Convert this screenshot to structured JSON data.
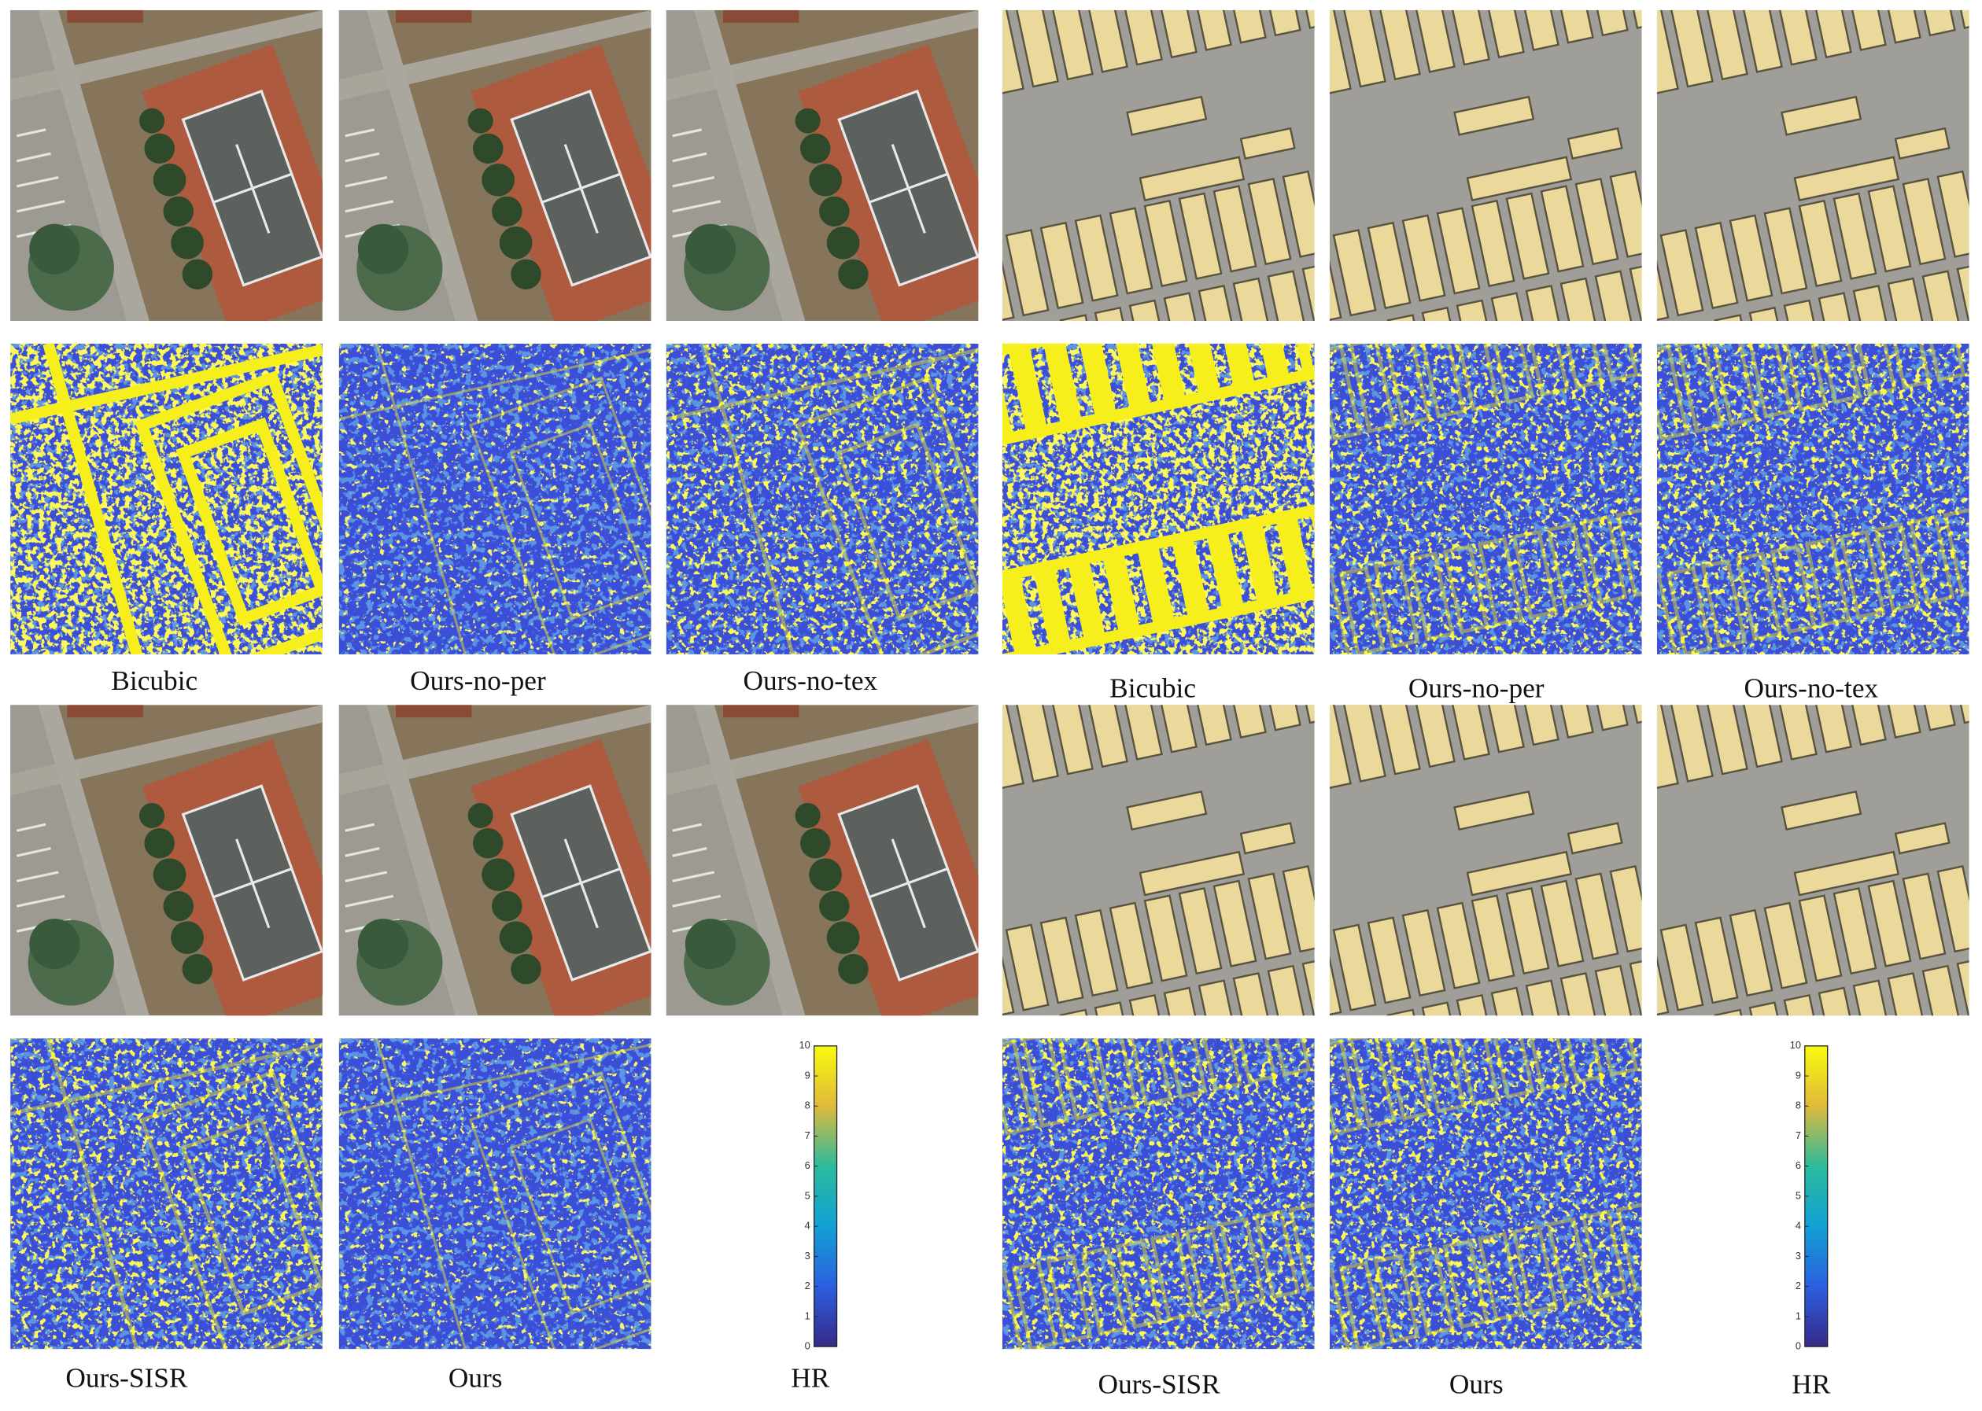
{
  "panels": [
    {
      "labels_top": [
        "Bicubic",
        "Ours-no-per",
        "Ours-no-tex"
      ],
      "labels_bottom": [
        "Ours-SISR",
        "Ours",
        "HR"
      ],
      "colorbar": {
        "lim": [
          0,
          10
        ],
        "ticks": [
          0,
          1,
          2,
          3,
          4,
          5,
          6,
          7,
          8,
          9,
          10
        ]
      }
    },
    {
      "labels_top": [
        "Bicubic",
        "Ours-no-per",
        "Ours-no-tex"
      ],
      "labels_bottom": [
        "Ours-SISR",
        "Ours",
        "HR"
      ],
      "colorbar": {
        "lim": [
          0,
          10
        ],
        "ticks": [
          0,
          1,
          2,
          3,
          4,
          5,
          6,
          7,
          8,
          9,
          10
        ]
      }
    }
  ]
}
